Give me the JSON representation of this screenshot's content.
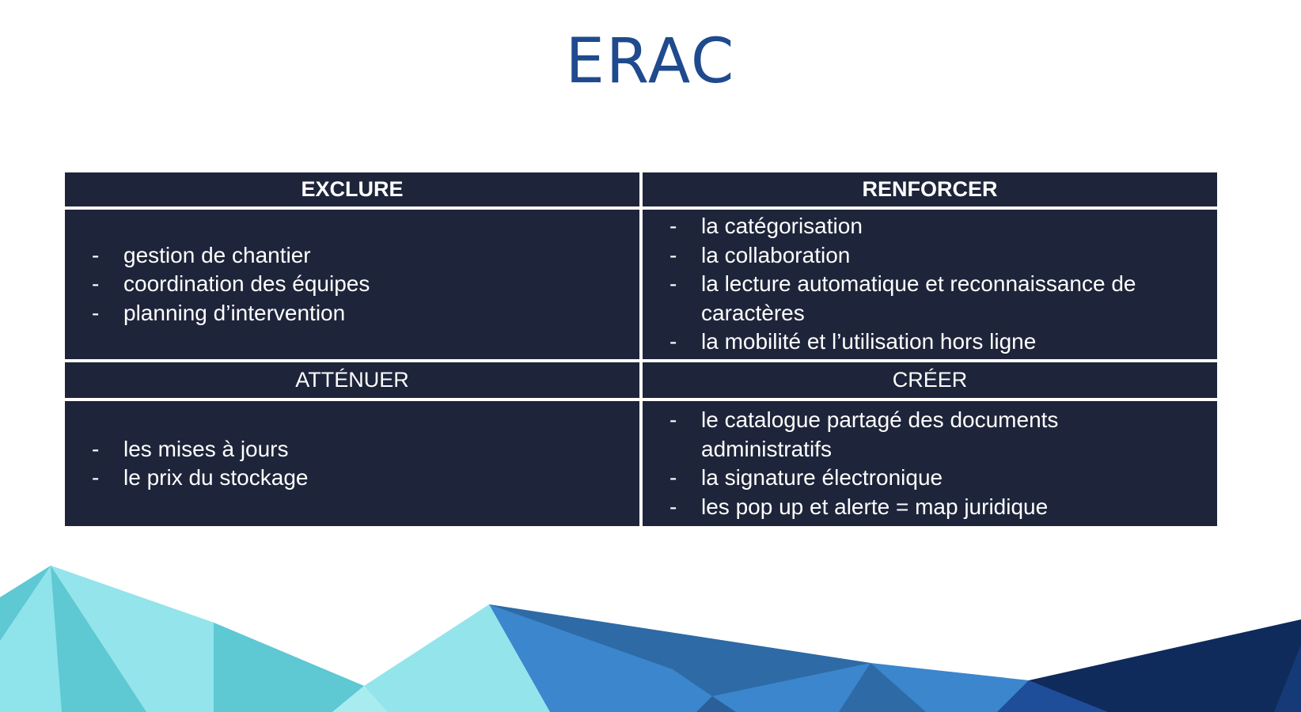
{
  "slide": {
    "title": "ERAC"
  },
  "table": {
    "exclure": {
      "header": "EXCLURE",
      "items": [
        "gestion de chantier",
        "coordination des équipes",
        "planning d’intervention"
      ]
    },
    "renforcer": {
      "header": "RENFORCER",
      "items": [
        "la catégorisation",
        "la collaboration",
        "la lecture automatique et reconnaissance de caractères",
        "la mobilité et l’utilisation hors ligne"
      ]
    },
    "attenuer": {
      "header": "ATTÉNUER",
      "items": [
        "les mises à jours",
        "le prix du stockage"
      ]
    },
    "creer": {
      "header": "CRÉER",
      "items": [
        "le catalogue partagé des documents administratifs",
        "la signature électronique",
        "les pop up et alerte = map juridique"
      ]
    }
  },
  "bullet_symbol": "-",
  "colors": {
    "title": "#1f4a8d",
    "table_background": "#1e253a",
    "table_text": "#ffffff"
  }
}
